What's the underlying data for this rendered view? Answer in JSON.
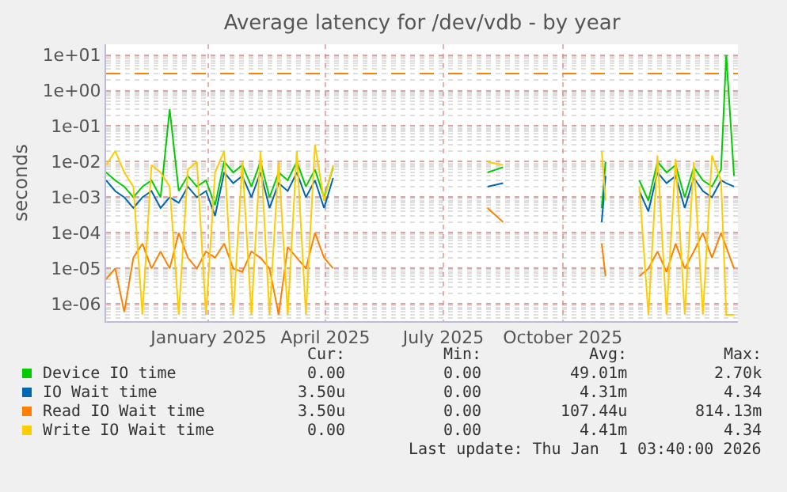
{
  "chart_data": {
    "type": "line",
    "title": "Average latency for /dev/vdb - by year",
    "ylabel": "seconds",
    "log": "y",
    "ylim": [
      3.3e-07,
      20
    ],
    "yticks": [
      {
        "value": 1e-06,
        "label": "1e-06"
      },
      {
        "value": 1e-05,
        "label": "1e-05"
      },
      {
        "value": 0.0001,
        "label": "1e-04"
      },
      {
        "value": 0.001,
        "label": "1e-03"
      },
      {
        "value": 0.01,
        "label": "1e-02"
      },
      {
        "value": 0.1,
        "label": "1e-01"
      },
      {
        "value": 1,
        "label": "1e+00"
      },
      {
        "value": 10,
        "label": "1e+01"
      }
    ],
    "xlim": [
      "2024-10-28",
      "2026-02-27"
    ],
    "xticks": [
      {
        "value": "2025-01-15",
        "label": "January 2025"
      },
      {
        "value": "2025-04-15",
        "label": "April 2025"
      },
      {
        "value": "2025-07-15",
        "label": "July 2025"
      },
      {
        "value": "2025-10-15",
        "label": "October 2025"
      }
    ],
    "x": [
      "2024-10-28",
      "2024-11-04",
      "2024-11-11",
      "2024-11-18",
      "2024-11-25",
      "2024-12-02",
      "2024-12-09",
      "2024-12-16",
      "2024-12-23",
      "2024-12-30",
      "2025-01-06",
      "2025-01-13",
      "2025-01-20",
      "2025-01-27",
      "2025-02-03",
      "2025-02-10",
      "2025-02-17",
      "2025-02-24",
      "2025-03-03",
      "2025-03-10",
      "2025-03-17",
      "2025-03-24",
      "2025-03-31",
      "2025-04-07",
      "2025-04-14",
      "2025-04-21",
      "2025-05-15",
      "2025-08-18",
      "2025-08-30",
      "2025-10-01",
      "2025-11-14",
      "2025-11-17",
      "2025-11-30",
      "2025-12-13",
      "2025-12-20",
      "2025-12-27",
      "2026-01-03",
      "2026-01-10",
      "2026-01-17",
      "2026-01-24",
      "2026-01-31",
      "2026-02-07",
      "2026-02-14",
      "2026-02-18",
      "2026-02-24"
    ],
    "series": [
      {
        "name": "Device IO time",
        "color": "#00cc00",
        "values": [
          0.005,
          0.003,
          0.002,
          0.001,
          0.002,
          0.003,
          0.001,
          0.3,
          0.0015,
          0.004,
          0.002,
          0.003,
          0.0006,
          0.01,
          0.005,
          0.008,
          0.002,
          0.01,
          0.001,
          0.005,
          0.003,
          0.01,
          0.002,
          0.006,
          0.001,
          0.007,
          null,
          0.005,
          0.007,
          null,
          0.0005,
          0.01,
          null,
          0.003,
          0.0008,
          0.01,
          0.005,
          0.008,
          0.001,
          0.007,
          0.003,
          0.002,
          0.006,
          10,
          0.004
        ]
      },
      {
        "name": "IO Wait time",
        "color": "#0066b3",
        "values": [
          0.003,
          0.0015,
          0.001,
          0.0005,
          0.001,
          0.0015,
          0.0005,
          0.001,
          0.0007,
          0.002,
          0.001,
          0.0015,
          0.0003,
          0.005,
          0.0025,
          0.004,
          0.001,
          0.005,
          0.0005,
          0.0025,
          0.0015,
          0.005,
          0.001,
          0.003,
          0.0005,
          0.0035,
          null,
          0.002,
          0.0025,
          null,
          0.0002,
          0.004,
          null,
          0.0015,
          0.0004,
          0.005,
          0.0025,
          0.004,
          0.0005,
          0.0035,
          0.0015,
          0.001,
          0.003,
          0.0025,
          0.002
        ]
      },
      {
        "name": "Read IO Wait time",
        "color": "#ff8000",
        "values": [
          5e-06,
          1e-05,
          6e-07,
          2e-05,
          5e-05,
          1e-05,
          3e-05,
          1e-05,
          0.0001,
          2e-05,
          1e-05,
          3e-05,
          2e-05,
          5e-05,
          1e-05,
          8e-06,
          3e-05,
          2e-05,
          1e-05,
          5e-07,
          4e-05,
          2e-05,
          1e-05,
          0.0001,
          2e-05,
          1e-05,
          null,
          0.0005,
          0.0002,
          null,
          5e-05,
          6e-06,
          null,
          6e-06,
          1e-05,
          3e-05,
          8e-06,
          5e-05,
          1e-05,
          3e-05,
          0.0001,
          2e-05,
          0.0001,
          4e-05,
          1e-05
        ]
      },
      {
        "name": "Write IO Wait time",
        "color": "#ffcc00",
        "values": [
          0.008,
          0.02,
          0.005,
          0.002,
          5e-07,
          0.008,
          0.005,
          0.002,
          5e-07,
          0.006,
          0.01,
          5e-07,
          0.005,
          0.02,
          5e-07,
          0.01,
          5e-07,
          0.02,
          5e-07,
          0.01,
          5e-07,
          0.02,
          5e-07,
          0.03,
          0.0008,
          0.008,
          null,
          0.01,
          0.008,
          null,
          0.02,
          0.0008,
          null,
          0.002,
          5e-07,
          0.015,
          5e-07,
          0.012,
          5e-07,
          0.01,
          5e-07,
          0.015,
          0.003,
          5e-07,
          5e-07
        ]
      }
    ],
    "ref_lines": [
      {
        "axis": "y",
        "value": 3,
        "color": "#ff8000",
        "line_style": "dashed"
      }
    ],
    "grid": true,
    "legend": "bottom",
    "line_style": "solid",
    "marker": "none",
    "annotations": [
      "Cur:",
      "Min:",
      "Avg:",
      "Max:",
      "0.00",
      "0.00",
      "49.01m",
      "2.70k",
      "3.50u",
      "0.00",
      "4.31m",
      "4.34",
      "3.50u",
      "0.00",
      "107.44u",
      "814.13m",
      "0.00",
      "0.00",
      "4.41m",
      "4.34",
      "Last update: Thu Jan  1 03:40:00 2026"
    ]
  }
}
